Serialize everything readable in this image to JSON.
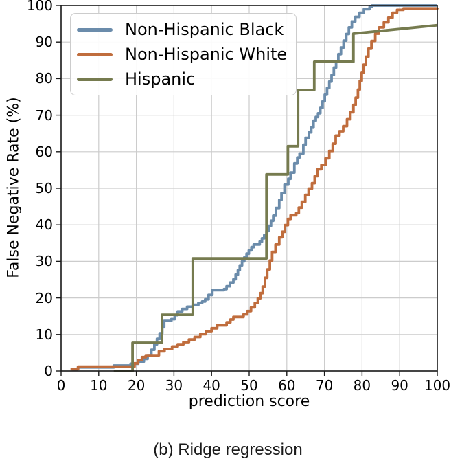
{
  "figure": {
    "caption": "(b) Ridge regression"
  },
  "chart_data": {
    "type": "line",
    "subtype": "step-ecdf",
    "title": "",
    "xlabel": "prediction score",
    "ylabel": "False Negative Rate (%)",
    "xlim": [
      0,
      100
    ],
    "ylim": [
      0,
      100
    ],
    "x_ticks": [
      0,
      10,
      20,
      30,
      40,
      50,
      60,
      70,
      80,
      90,
      100
    ],
    "y_ticks": [
      0,
      10,
      20,
      30,
      40,
      50,
      60,
      70,
      80,
      90,
      100
    ],
    "grid": true,
    "legend_position": "upper left",
    "colors": {
      "grid": "#cccccc",
      "spine": "#1a1a1a",
      "text": "#000000"
    },
    "series": [
      {
        "name": "Non-Hispanic Black",
        "color": "#6b8cab",
        "points": [
          [
            3,
            0.5
          ],
          [
            4.5,
            1
          ],
          [
            14,
            1.5
          ],
          [
            18.5,
            2
          ],
          [
            20.5,
            2.6
          ],
          [
            22,
            3.3
          ],
          [
            23,
            4.3
          ],
          [
            24,
            5.8
          ],
          [
            24.8,
            7.3
          ],
          [
            25.5,
            8.8
          ],
          [
            26.2,
            10.3
          ],
          [
            26.9,
            12
          ],
          [
            27.4,
            13.7
          ],
          [
            29.3,
            14.2
          ],
          [
            30.2,
            15.3
          ],
          [
            31,
            16.3
          ],
          [
            32.2,
            17
          ],
          [
            33.5,
            17.6
          ],
          [
            35,
            18.1
          ],
          [
            36.5,
            18.6
          ],
          [
            37.5,
            19
          ],
          [
            38.3,
            19.6
          ],
          [
            39.2,
            20.8
          ],
          [
            40.2,
            22.1
          ],
          [
            43.3,
            22.4
          ],
          [
            44,
            23.2
          ],
          [
            44.9,
            24.2
          ],
          [
            45.8,
            25.1
          ],
          [
            46.4,
            26.4
          ],
          [
            47,
            27.6
          ],
          [
            47.5,
            28.9
          ],
          [
            48.1,
            30
          ],
          [
            48.7,
            31.1
          ],
          [
            49.3,
            32.1
          ],
          [
            49.9,
            33
          ],
          [
            50.6,
            33.9
          ],
          [
            51.2,
            34.6
          ],
          [
            52.8,
            35.4
          ],
          [
            53.4,
            36.3
          ],
          [
            54,
            37.2
          ],
          [
            54.6,
            38.3
          ],
          [
            55.2,
            39.7
          ],
          [
            55.8,
            41.1
          ],
          [
            56.4,
            42.5
          ],
          [
            57.1,
            44.6
          ],
          [
            58,
            46.8
          ],
          [
            58.6,
            48.7
          ],
          [
            59.4,
            51
          ],
          [
            60.4,
            52.6
          ],
          [
            61,
            54.3
          ],
          [
            62,
            56.8
          ],
          [
            62.8,
            58.4
          ],
          [
            63.4,
            59.5
          ],
          [
            64.4,
            61.9
          ],
          [
            65,
            63.8
          ],
          [
            65.9,
            65.3
          ],
          [
            66.5,
            66.6
          ],
          [
            67.1,
            68.5
          ],
          [
            67.7,
            69.5
          ],
          [
            68.3,
            70.5
          ],
          [
            68.9,
            72
          ],
          [
            69.5,
            73.8
          ],
          [
            70.1,
            75.6
          ],
          [
            70.7,
            77.4
          ],
          [
            71.3,
            79.2
          ],
          [
            71.9,
            81
          ],
          [
            72.5,
            83
          ],
          [
            73.1,
            84.8
          ],
          [
            73.7,
            86.7
          ],
          [
            74.4,
            88.5
          ],
          [
            75.1,
            90.4
          ],
          [
            75.8,
            92.2
          ],
          [
            76.5,
            94
          ],
          [
            77.3,
            95.6
          ],
          [
            78.2,
            96.9
          ],
          [
            79.3,
            98
          ],
          [
            80.5,
            99
          ],
          [
            82,
            99.6
          ],
          [
            82.6,
            100
          ],
          [
            100,
            100
          ]
        ]
      },
      {
        "name": "Non-Hispanic White",
        "color": "#c06d3d",
        "points": [
          [
            2.5,
            0.5
          ],
          [
            4.5,
            1.2
          ],
          [
            19.5,
            2.1
          ],
          [
            20.5,
            3
          ],
          [
            21.5,
            3.8
          ],
          [
            22.5,
            4.3
          ],
          [
            26,
            5.4
          ],
          [
            27.5,
            6
          ],
          [
            29.5,
            6.7
          ],
          [
            31,
            7.3
          ],
          [
            32.5,
            7.9
          ],
          [
            34,
            8.6
          ],
          [
            35.5,
            9.3
          ],
          [
            37,
            10.1
          ],
          [
            38.5,
            10.9
          ],
          [
            40,
            11.7
          ],
          [
            41.5,
            12.5
          ],
          [
            44,
            13.3
          ],
          [
            45,
            14.1
          ],
          [
            45.8,
            14.8
          ],
          [
            48.5,
            15.5
          ],
          [
            49.5,
            16.4
          ],
          [
            50.5,
            17.4
          ],
          [
            51.5,
            18.6
          ],
          [
            52.3,
            19.9
          ],
          [
            53,
            21.3
          ],
          [
            53.6,
            23.1
          ],
          [
            54.2,
            25.5
          ],
          [
            54.8,
            27.8
          ],
          [
            55.5,
            30.2
          ],
          [
            56.1,
            32.6
          ],
          [
            57,
            34.6
          ],
          [
            58,
            36.6
          ],
          [
            58.8,
            38.1
          ],
          [
            59.5,
            39.9
          ],
          [
            60.3,
            41.6
          ],
          [
            61,
            42.6
          ],
          [
            62.5,
            43.2
          ],
          [
            63.2,
            44.7
          ],
          [
            64,
            46.3
          ],
          [
            64.9,
            48.2
          ],
          [
            65.8,
            49.9
          ],
          [
            66.7,
            51.4
          ],
          [
            67.4,
            53.3
          ],
          [
            68.2,
            55.2
          ],
          [
            69.2,
            56.4
          ],
          [
            70.3,
            58.2
          ],
          [
            71.3,
            60.2
          ],
          [
            72.2,
            62.2
          ],
          [
            73,
            64.4
          ],
          [
            74,
            65.6
          ],
          [
            75,
            67
          ],
          [
            76,
            68.9
          ],
          [
            76.9,
            70.8
          ],
          [
            77.7,
            72.8
          ],
          [
            78.3,
            74.8
          ],
          [
            78.9,
            77
          ],
          [
            79.4,
            79.4
          ],
          [
            79.9,
            81.6
          ],
          [
            80.4,
            83.8
          ],
          [
            81,
            86
          ],
          [
            81.7,
            88.2
          ],
          [
            82.5,
            90.3
          ],
          [
            83.5,
            92.3
          ],
          [
            84.5,
            94
          ],
          [
            85.8,
            95.4
          ],
          [
            87,
            96.7
          ],
          [
            88.1,
            98
          ],
          [
            89.3,
            98.8
          ],
          [
            91,
            99.2
          ],
          [
            100,
            99.3
          ]
        ]
      },
      {
        "name": "Hispanic",
        "color": "#767b4f",
        "points": [
          [
            14,
            0
          ],
          [
            19,
            7.7
          ],
          [
            26.8,
            15.4
          ],
          [
            35,
            30.8
          ],
          [
            54.6,
            53.8
          ],
          [
            60.3,
            61.5
          ],
          [
            63,
            76.9
          ],
          [
            67.3,
            84.6
          ],
          [
            77.7,
            92.3
          ],
          [
            100,
            94.6,
            "lin"
          ]
        ]
      }
    ]
  }
}
